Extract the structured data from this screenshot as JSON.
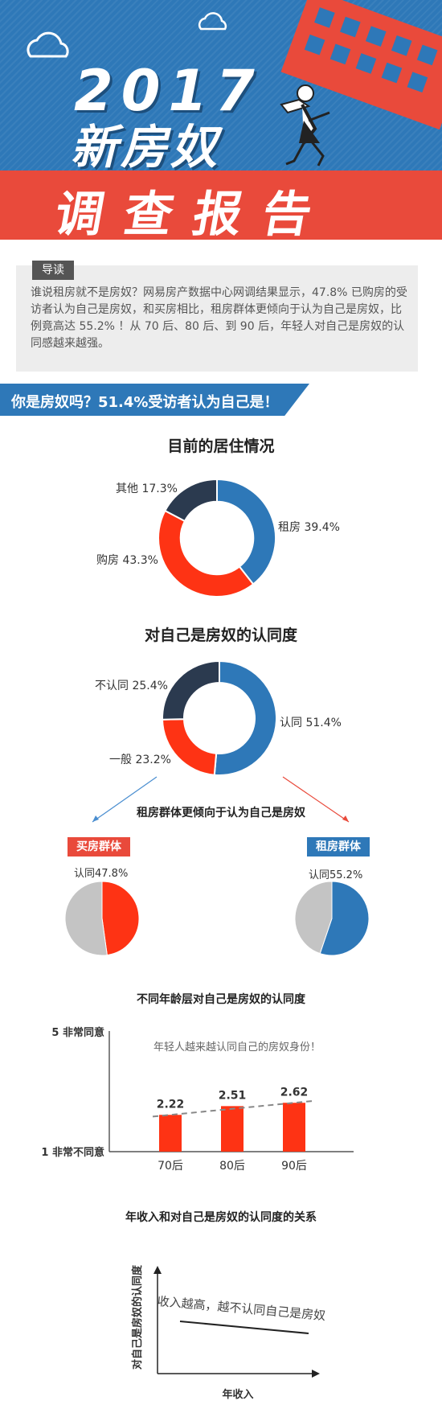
{
  "header": {
    "year": "2017",
    "title": "新房奴",
    "banner": "调查报告"
  },
  "lead": {
    "badge": "导读",
    "text": "谁说租房就不是房奴？网易房产数据中心网调结果显示，47.8% 已购房的受访者认为自己是房奴，和买房相比，租房群体更倾向于认为自己是房奴，比例竟高达 55.2% ！从 70 后、80 后、到 90 后，年轻人对自己是房奴的认同感越来越强。"
  },
  "question_banner": "你是房奴吗？51.4%受访者认为自己是！",
  "colors": {
    "blue": "#2e78b8",
    "red": "#fe3314",
    "navy": "#2b3a4f",
    "gray": "#c4c4c4",
    "banner_red": "#e94a3b"
  },
  "chart_data": [
    {
      "type": "pie",
      "title": "目前的居住情况",
      "slices": [
        {
          "label": "租房",
          "value": 39.4,
          "text": "租房 39.4%"
        },
        {
          "label": "购房",
          "value": 43.3,
          "text": "购房 43.3%"
        },
        {
          "label": "其他",
          "value": 17.3,
          "text": "其他 17.3%"
        }
      ]
    },
    {
      "type": "pie",
      "title": "对自己是房奴的认同度",
      "slices": [
        {
          "label": "认同",
          "value": 51.4,
          "text": "认同 51.4%"
        },
        {
          "label": "一般",
          "value": 23.2,
          "text": "一般 23.2%"
        },
        {
          "label": "不认同",
          "value": 25.4,
          "text": "不认同 25.4%"
        }
      ]
    },
    {
      "type": "pie",
      "title": "买房群体",
      "slices": [
        {
          "label": "认同",
          "value": 47.8,
          "text": "认同47.8%"
        },
        {
          "label": "",
          "value": 52.2,
          "text": ""
        }
      ]
    },
    {
      "type": "pie",
      "title": "租房群体",
      "slices": [
        {
          "label": "认同",
          "value": 55.2,
          "text": "认同55.2%"
        },
        {
          "label": "",
          "value": 44.8,
          "text": ""
        }
      ]
    },
    {
      "type": "bar",
      "title": "不同年龄层对自己是房奴的认同度",
      "categories": [
        "70后",
        "80后",
        "90后"
      ],
      "values": [
        2.22,
        2.51,
        2.62
      ],
      "value_labels": [
        "2.22",
        "2.51",
        "2.62"
      ],
      "ylim": [
        1,
        5
      ],
      "y_top_label": "5 非常同意",
      "y_bottom_label": "1 非常不同意",
      "annotation": "年轻人越来越认同自己的房奴身份！"
    },
    {
      "type": "line",
      "title": "年收入和对自己是房奴的认同度的关系",
      "xlabel": "年收入",
      "ylabel": "对自己是房奴的认同度",
      "annotation": "收入越高，越不认同自己是房奴"
    }
  ],
  "compare_caption": "租房群体更倾向于认为自己是房奴"
}
